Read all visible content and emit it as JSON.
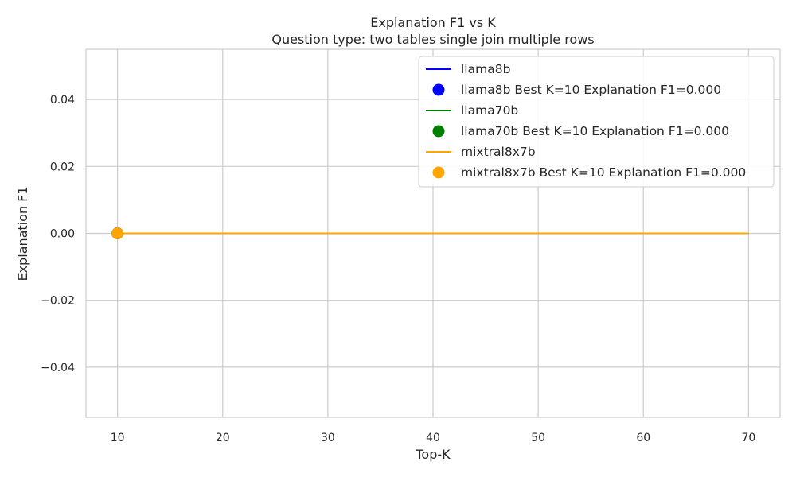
{
  "chart_data": {
    "type": "line",
    "title": "Explanation F1 vs K",
    "subtitle": "Question type: two tables single join multiple rows",
    "xlabel": "Top-K",
    "ylabel": "Explanation F1",
    "xlim": [
      7,
      73
    ],
    "ylim": [
      -0.055,
      0.055
    ],
    "xticks": [
      10,
      20,
      30,
      40,
      50,
      60,
      70
    ],
    "xtick_labels": [
      "10",
      "20",
      "30",
      "40",
      "50",
      "60",
      "70"
    ],
    "yticks": [
      -0.04,
      -0.02,
      0.0,
      0.02,
      0.04
    ],
    "ytick_labels": [
      "−0.04",
      "−0.02",
      "0.00",
      "0.02",
      "0.04"
    ],
    "grid": true,
    "legend_position": "top-right",
    "x": [
      10,
      20,
      30,
      40,
      50,
      60,
      70
    ],
    "series": [
      {
        "name": "llama8b",
        "color": "#0000ff",
        "values": [
          0,
          0,
          0,
          0,
          0,
          0,
          0
        ],
        "best": {
          "x": 10,
          "y": 0.0,
          "label": "llama8b Best K=10 Explanation F1=0.000"
        }
      },
      {
        "name": "llama70b",
        "color": "#008000",
        "values": [
          0,
          0,
          0,
          0,
          0,
          0,
          0
        ],
        "best": {
          "x": 10,
          "y": 0.0,
          "label": "llama70b Best K=10 Explanation F1=0.000"
        }
      },
      {
        "name": "mixtral8x7b",
        "color": "#ffa500",
        "values": [
          0,
          0,
          0,
          0,
          0,
          0,
          0
        ],
        "best": {
          "x": 10,
          "y": 0.0,
          "label": "mixtral8x7b Best K=10 Explanation F1=0.000"
        }
      }
    ]
  }
}
